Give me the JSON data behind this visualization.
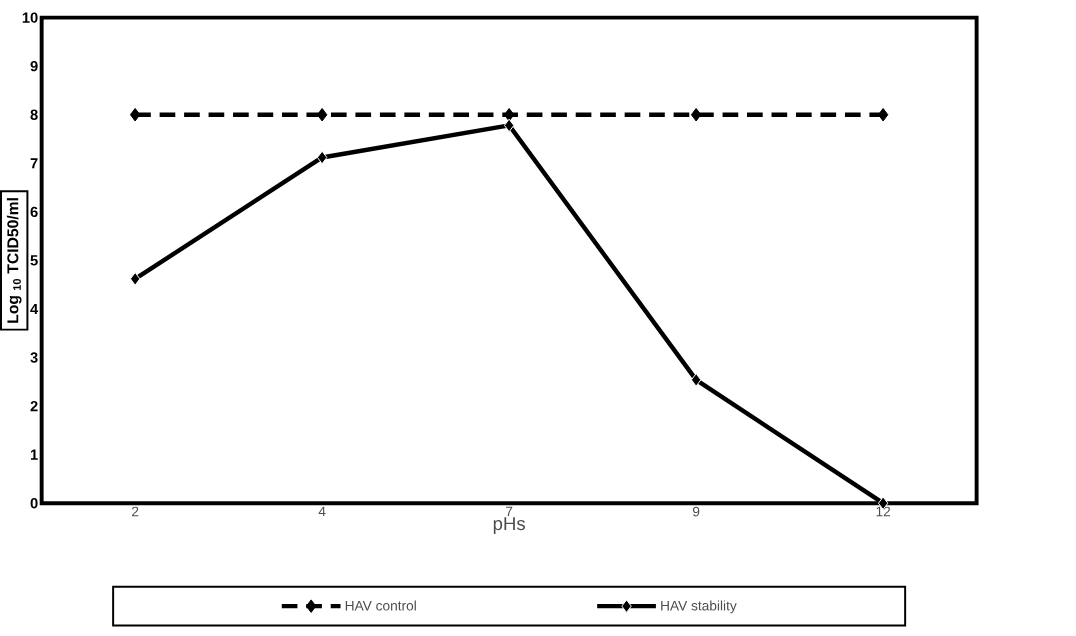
{
  "chart_data": {
    "type": "line",
    "xlabel": "pHs",
    "ylabel": "Log $_{10}$ TCID50/ml",
    "categories": [
      "2",
      "4",
      "7",
      "9",
      "12"
    ],
    "series": [
      {
        "name": "HAV control",
        "color": "#000000",
        "line_style": "dashed",
        "values": [
          8,
          8,
          8,
          8,
          8
        ]
      },
      {
        "name": "HAV stability",
        "color": "#000000",
        "line_style": "solid",
        "values": [
          4.62,
          7.12,
          7.78,
          2.54,
          0
        ]
      }
    ],
    "ylim": [
      0,
      10
    ],
    "yticks": [
      0,
      1,
      2,
      3,
      4,
      5,
      6,
      7,
      8,
      9,
      10
    ],
    "marker": "diamond",
    "legend": "bottom"
  }
}
